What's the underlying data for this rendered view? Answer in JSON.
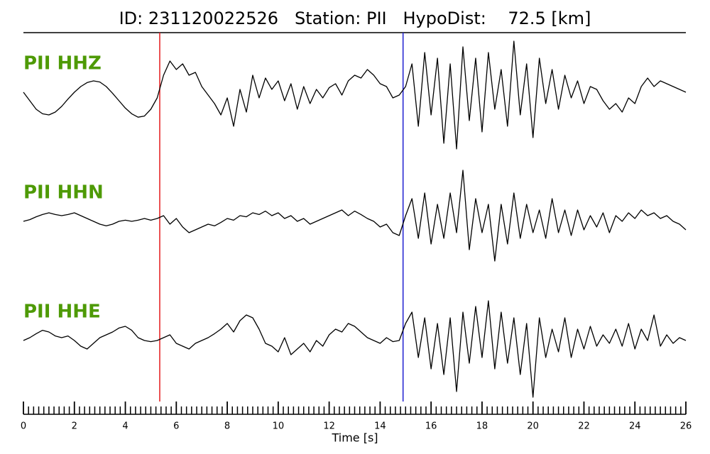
{
  "chart_data": {
    "type": "seismogram",
    "title": "ID: 231120022526   Station: PII   HypoDist:    72.5 [km]",
    "xlabel": "Time [s]",
    "xlim": [
      0,
      26
    ],
    "xticks": [
      0,
      2,
      4,
      6,
      8,
      10,
      12,
      14,
      16,
      18,
      20,
      22,
      24,
      26
    ],
    "minor_xticks": [
      0.2,
      0.4,
      0.6,
      0.8,
      1,
      1.2,
      1.4,
      1.6,
      1.8,
      2.2,
      2.4,
      2.6,
      2.8,
      3,
      3.2,
      3.4,
      3.6,
      3.8,
      4.2,
      4.4,
      4.6,
      4.8,
      5,
      5.2,
      5.4,
      5.6,
      5.8,
      6.2,
      6.4,
      6.6,
      6.8,
      7,
      7.2,
      7.4,
      7.6,
      7.8,
      8.2,
      8.4,
      8.6,
      8.8,
      9,
      9.2,
      9.4,
      9.6,
      9.8,
      10.2,
      10.4,
      10.6,
      10.8,
      11,
      11.2,
      11.4,
      11.6,
      11.8,
      12.2,
      12.4,
      12.6,
      12.8,
      13,
      13.2,
      13.4,
      13.6,
      13.8,
      14.2,
      14.4,
      14.6,
      14.8,
      15,
      15.2,
      15.4,
      15.6,
      15.8,
      16.2,
      16.4,
      16.6,
      16.8,
      17,
      17.2,
      17.4,
      17.6,
      17.8,
      18.2,
      18.4,
      18.6,
      18.8,
      19,
      19.2,
      19.4,
      19.6,
      19.8,
      20.2,
      20.4,
      20.6,
      20.8,
      21,
      21.2,
      21.4,
      21.6,
      21.8,
      22.2,
      22.4,
      22.6,
      22.8,
      23,
      23.2,
      23.4,
      23.6,
      23.8,
      24.2,
      24.4,
      24.6,
      24.8,
      25,
      25.2,
      25.4,
      25.6,
      25.8
    ],
    "ylim": [
      -1,
      1
    ],
    "picks": [
      {
        "x": 5.35,
        "color": "#e41a1c"
      },
      {
        "x": 14.9,
        "color": "#1f1fd0"
      }
    ],
    "x": [
      0,
      0.25,
      0.5,
      0.75,
      1,
      1.25,
      1.5,
      1.75,
      2,
      2.25,
      2.5,
      2.75,
      3,
      3.25,
      3.5,
      3.75,
      4,
      4.25,
      4.5,
      4.75,
      5,
      5.25,
      5.5,
      5.75,
      6,
      6.25,
      6.5,
      6.75,
      7,
      7.25,
      7.5,
      7.75,
      8,
      8.25,
      8.5,
      8.75,
      9,
      9.25,
      9.5,
      9.75,
      10,
      10.25,
      10.5,
      10.75,
      11,
      11.25,
      11.5,
      11.75,
      12,
      12.25,
      12.5,
      12.75,
      13,
      13.25,
      13.5,
      13.75,
      14,
      14.25,
      14.5,
      14.75,
      15,
      15.25,
      15.5,
      15.75,
      16,
      16.25,
      16.5,
      16.75,
      17,
      17.25,
      17.5,
      17.75,
      18,
      18.25,
      18.5,
      18.75,
      19,
      19.25,
      19.5,
      19.75,
      20,
      20.25,
      20.5,
      20.75,
      21,
      21.25,
      21.5,
      21.75,
      22,
      22.25,
      22.5,
      22.75,
      23,
      23.25,
      23.5,
      23.75,
      24,
      24.25,
      24.5,
      24.75,
      25,
      25.25,
      25.5,
      25.75,
      26
    ],
    "label_color": "#4e9a06",
    "series": [
      {
        "name": "PII HHZ",
        "color": "#000000",
        "values": [
          0,
          -0.15,
          -0.3,
          -0.38,
          -0.4,
          -0.35,
          -0.25,
          -0.12,
          0,
          0.1,
          0.17,
          0.2,
          0.18,
          0.1,
          -0.02,
          -0.15,
          -0.28,
          -0.38,
          -0.44,
          -0.42,
          -0.3,
          -0.1,
          0.3,
          0.55,
          0.4,
          0.5,
          0.3,
          0.35,
          0.1,
          -0.05,
          -0.2,
          -0.4,
          -0.1,
          -0.6,
          0.05,
          -0.35,
          0.3,
          -0.1,
          0.25,
          0.05,
          0.2,
          -0.15,
          0.15,
          -0.3,
          0.1,
          -0.2,
          0.05,
          -0.1,
          0.08,
          0.15,
          -0.05,
          0.2,
          0.3,
          0.25,
          0.4,
          0.3,
          0.15,
          0.1,
          -0.1,
          -0.05,
          0.1,
          0.5,
          -0.6,
          0.7,
          -0.4,
          0.6,
          -0.9,
          0.5,
          -1.0,
          0.8,
          -0.5,
          0.6,
          -0.7,
          0.7,
          -0.3,
          0.4,
          -0.6,
          0.9,
          -0.4,
          0.5,
          -0.8,
          0.6,
          -0.2,
          0.4,
          -0.3,
          0.3,
          -0.1,
          0.2,
          -0.2,
          0.1,
          0.05,
          -0.15,
          -0.3,
          -0.2,
          -0.35,
          -0.1,
          -0.2,
          0.1,
          0.25,
          0.1,
          0.2,
          0.15,
          0.1,
          0.05,
          0.0
        ]
      },
      {
        "name": "PII HHN",
        "color": "#000000",
        "values": [
          0,
          0.03,
          0.08,
          0.12,
          0.15,
          0.12,
          0.1,
          0.12,
          0.15,
          0.1,
          0.05,
          0,
          -0.05,
          -0.08,
          -0.05,
          0,
          0.02,
          0,
          0.02,
          0.05,
          0.02,
          0.05,
          0.1,
          -0.05,
          0.05,
          -0.1,
          -0.2,
          -0.15,
          -0.1,
          -0.05,
          -0.08,
          -0.02,
          0.05,
          0.02,
          0.1,
          0.08,
          0.15,
          0.12,
          0.18,
          0.1,
          0.15,
          0.05,
          0.1,
          0,
          0.05,
          -0.05,
          0,
          0.05,
          0.1,
          0.15,
          0.2,
          0.1,
          0.18,
          0.12,
          0.05,
          0,
          -0.1,
          -0.05,
          -0.2,
          -0.25,
          0.1,
          0.4,
          -0.3,
          0.5,
          -0.4,
          0.3,
          -0.3,
          0.5,
          -0.2,
          0.9,
          -0.5,
          0.4,
          -0.2,
          0.3,
          -0.7,
          0.3,
          -0.4,
          0.5,
          -0.3,
          0.3,
          -0.2,
          0.2,
          -0.3,
          0.4,
          -0.2,
          0.2,
          -0.25,
          0.2,
          -0.15,
          0.1,
          -0.1,
          0.15,
          -0.2,
          0.1,
          0,
          0.15,
          0.05,
          0.2,
          0.1,
          0.15,
          0.05,
          0.1,
          0,
          -0.05,
          -0.15
        ]
      },
      {
        "name": "PII HHE",
        "color": "#000000",
        "values": [
          0,
          0.05,
          0.12,
          0.18,
          0.15,
          0.08,
          0.05,
          0.08,
          0,
          -0.1,
          -0.15,
          -0.05,
          0.05,
          0.1,
          0.15,
          0.22,
          0.25,
          0.18,
          0.05,
          0,
          -0.02,
          0,
          0.05,
          0.1,
          -0.05,
          -0.1,
          -0.15,
          -0.05,
          0,
          0.05,
          0.12,
          0.2,
          0.3,
          0.15,
          0.35,
          0.45,
          0.4,
          0.2,
          -0.05,
          -0.1,
          -0.2,
          0.05,
          -0.25,
          -0.15,
          -0.05,
          -0.2,
          0,
          -0.1,
          0.1,
          0.2,
          0.15,
          0.3,
          0.25,
          0.15,
          0.05,
          0,
          -0.05,
          0.05,
          -0.02,
          0,
          0.3,
          0.5,
          -0.3,
          0.4,
          -0.5,
          0.3,
          -0.6,
          0.4,
          -0.9,
          0.5,
          -0.4,
          0.6,
          -0.3,
          0.7,
          -0.5,
          0.5,
          -0.4,
          0.4,
          -0.6,
          0.3,
          -1.0,
          0.4,
          -0.3,
          0.2,
          -0.2,
          0.4,
          -0.3,
          0.2,
          -0.15,
          0.25,
          -0.1,
          0.1,
          -0.05,
          0.2,
          -0.1,
          0.3,
          -0.15,
          0.2,
          0,
          0.45,
          -0.1,
          0.1,
          -0.05,
          0.05,
          0
        ]
      }
    ]
  }
}
